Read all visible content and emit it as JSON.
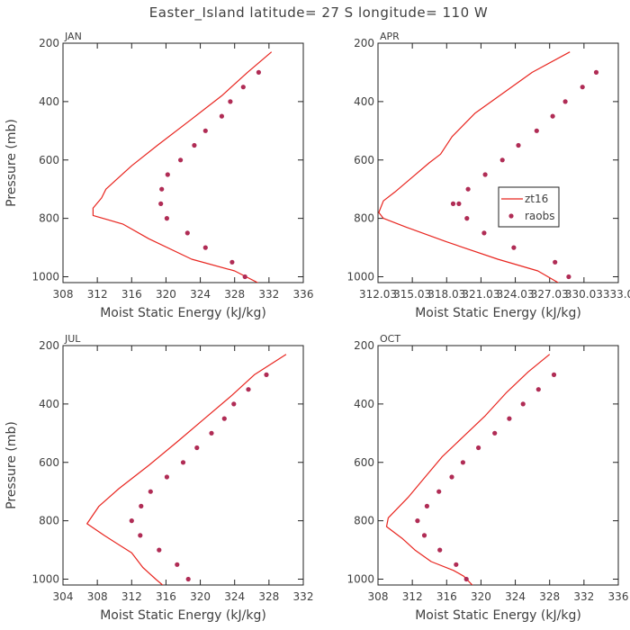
{
  "figure": {
    "title": "Easter_Island  latitude= 27 S longitude= 110 W",
    "colors": {
      "model": "#e8251f",
      "obs": "#b02c55",
      "axis": "#222222",
      "text": "#404040"
    }
  },
  "chart_data": [
    {
      "type": "line",
      "title": "JAN",
      "xlabel": "Moist Static Energy (kJ/kg)",
      "ylabel": "Pressure (mb)",
      "xlim": [
        308,
        336
      ],
      "ylim": [
        1020,
        200
      ],
      "xticks": [
        308,
        312,
        316,
        320,
        324,
        328,
        332,
        336
      ],
      "xtick_labels": [
        "308",
        "312",
        "316",
        "320",
        "324",
        "328",
        "332",
        "336"
      ],
      "yticks": [
        200,
        400,
        600,
        800,
        1000
      ],
      "ytick_labels": [
        "200",
        "400",
        "600",
        "800",
        "1000"
      ],
      "series": [
        {
          "name": "zt16",
          "kind": "line",
          "x": [
            332.3,
            329.5,
            326.5,
            323,
            319,
            316,
            313,
            312.5,
            311.5,
            311.5,
            315,
            318,
            323,
            328,
            331
          ],
          "y": [
            230,
            300,
            380,
            460,
            550,
            620,
            700,
            730,
            765,
            790,
            820,
            870,
            940,
            980,
            1025
          ]
        },
        {
          "name": "raobs",
          "kind": "points",
          "x": [
            330.8,
            329,
            327.5,
            326.5,
            324.6,
            323.3,
            321.7,
            320.2,
            319.5,
            319.4,
            320.1,
            322.5,
            324.6,
            327.7,
            329.2
          ],
          "y": [
            300,
            350,
            400,
            450,
            500,
            550,
            600,
            650,
            700,
            750,
            800,
            850,
            900,
            950,
            1000
          ]
        }
      ]
    },
    {
      "type": "line",
      "title": "APR",
      "xlabel": "Moist Static Energy (kJ/kg)",
      "ylabel": "",
      "xlim": [
        312.03,
        333.03
      ],
      "ylim": [
        1020,
        200
      ],
      "xticks": [
        312.03,
        315.03,
        318.03,
        321.03,
        324.03,
        327.03,
        330.03,
        333.03
      ],
      "xtick_labels": [
        "312.03",
        "315.03",
        "318.03",
        "321.03",
        "324.03",
        "327.03",
        "330.03",
        "333.0"
      ],
      "yticks": [
        200,
        400,
        600,
        800,
        1000
      ],
      "ytick_labels": [
        "200",
        "400",
        "600",
        "800",
        "1000"
      ],
      "legend": {
        "position": "middle-right",
        "entries": [
          "zt16",
          "raobs"
        ]
      },
      "series": [
        {
          "name": "zt16",
          "kind": "line",
          "x": [
            328.8,
            325.5,
            323,
            320.5,
            318.5,
            317.5,
            316.5,
            315,
            313.5,
            312.5,
            312.1,
            312.5,
            314.5,
            318,
            322.5,
            326,
            328.2
          ],
          "y": [
            230,
            300,
            370,
            440,
            520,
            580,
            610,
            660,
            710,
            740,
            780,
            800,
            830,
            880,
            940,
            980,
            1030
          ]
        },
        {
          "name": "raobs",
          "kind": "points",
          "x": [
            331.1,
            329.9,
            328.4,
            327.3,
            325.9,
            324.3,
            322.9,
            321.4,
            319.9,
            319.1,
            318.6,
            319.8,
            321.3,
            323.9,
            327.5,
            328.7
          ],
          "y": [
            300,
            350,
            400,
            450,
            500,
            550,
            600,
            650,
            700,
            750,
            750,
            800,
            850,
            900,
            950,
            1000
          ]
        }
      ]
    },
    {
      "type": "line",
      "title": "JUL",
      "xlabel": "Moist Static Energy (kJ/kg)",
      "ylabel": "Pressure (mb)",
      "xlim": [
        304,
        332
      ],
      "ylim": [
        1020,
        200
      ],
      "xticks": [
        304,
        308,
        312,
        316,
        320,
        324,
        328,
        332
      ],
      "xtick_labels": [
        "304",
        "308",
        "312",
        "316",
        "320",
        "324",
        "328",
        "332"
      ],
      "yticks": [
        200,
        400,
        600,
        800,
        1000
      ],
      "ytick_labels": [
        "200",
        "400",
        "600",
        "800",
        "1000"
      ],
      "series": [
        {
          "name": "zt16",
          "kind": "line",
          "x": [
            330,
            326.3,
            323.7,
            320.5,
            317.3,
            314,
            310.5,
            308.2,
            306.8,
            308.8,
            312,
            313.3,
            314.8,
            316
          ],
          "y": [
            230,
            300,
            370,
            450,
            530,
            610,
            690,
            750,
            810,
            850,
            910,
            960,
            1000,
            1030
          ]
        },
        {
          "name": "raobs",
          "kind": "points",
          "x": [
            327.7,
            325.6,
            323.9,
            322.8,
            321.3,
            319.6,
            318,
            316.1,
            314.2,
            313.1,
            312,
            313,
            315.2,
            317.3,
            318.6
          ],
          "y": [
            300,
            350,
            400,
            450,
            500,
            550,
            600,
            650,
            700,
            750,
            800,
            850,
            900,
            950,
            1000
          ]
        }
      ]
    },
    {
      "type": "line",
      "title": "OCT",
      "xlabel": "Moist Static Energy (kJ/kg)",
      "ylabel": "",
      "xlim": [
        308,
        336
      ],
      "ylim": [
        1020,
        200
      ],
      "xticks": [
        308,
        312,
        316,
        320,
        324,
        328,
        332,
        336
      ],
      "xtick_labels": [
        "308",
        "312",
        "316",
        "320",
        "324",
        "328",
        "332",
        "336"
      ],
      "yticks": [
        200,
        400,
        600,
        800,
        1000
      ],
      "ytick_labels": [
        "200",
        "400",
        "600",
        "800",
        "1000"
      ],
      "series": [
        {
          "name": "zt16",
          "kind": "line",
          "x": [
            328,
            325.5,
            323,
            320.5,
            318,
            315.5,
            313.5,
            311.5,
            309.2,
            309,
            310.8,
            312.3,
            314.2,
            316.8,
            318,
            319.3
          ],
          "y": [
            230,
            290,
            360,
            440,
            510,
            580,
            650,
            720,
            790,
            820,
            860,
            900,
            940,
            970,
            990,
            1030
          ]
        },
        {
          "name": "raobs",
          "kind": "points",
          "x": [
            328.5,
            326.7,
            324.9,
            323.3,
            321.6,
            319.7,
            317.9,
            316.6,
            315.1,
            313.7,
            312.6,
            313.4,
            315.2,
            317.1,
            318.3
          ],
          "y": [
            300,
            350,
            400,
            450,
            500,
            550,
            600,
            650,
            700,
            750,
            800,
            850,
            900,
            950,
            1000
          ]
        }
      ]
    }
  ]
}
